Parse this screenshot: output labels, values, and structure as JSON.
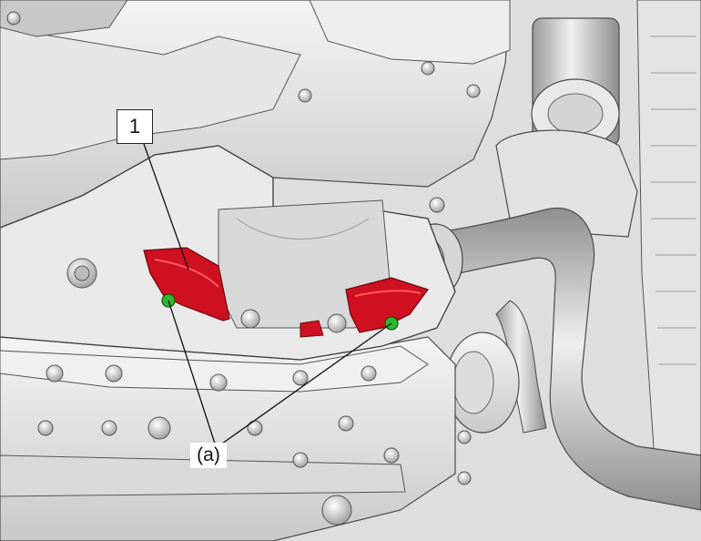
{
  "callouts": {
    "part_number": "1",
    "fastener_label": "(a)"
  },
  "colors": {
    "highlight_part": "#cf1020",
    "fastener_dot": "#2fb82f",
    "metal_light": "#f2f2f2",
    "metal_mid": "#cfcfcf",
    "metal_dark": "#8f8f8f",
    "outline": "#3a3a3a"
  }
}
